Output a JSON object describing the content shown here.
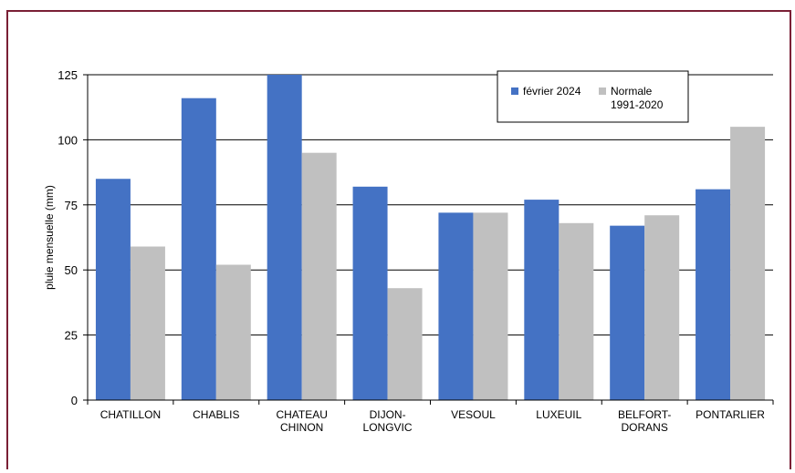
{
  "chart_data": {
    "type": "bar",
    "ylabel": "pluie mensuelle (mm)",
    "xlabel": "",
    "ylim": [
      0,
      125
    ],
    "yticks": [
      "0",
      "25",
      "50",
      "75",
      "100",
      "125"
    ],
    "grid": true,
    "legend_position": "top-right",
    "categories": [
      [
        "CHATILLON"
      ],
      [
        "CHABLIS"
      ],
      [
        "CHATEAU",
        "CHINON"
      ],
      [
        "DIJON-",
        "LONGVIC"
      ],
      [
        "VESOUL"
      ],
      [
        "LUXEUIL"
      ],
      [
        "BELFORT-",
        "DORANS"
      ],
      [
        "PONTARLIER"
      ]
    ],
    "series": [
      {
        "name": [
          "février 2024"
        ],
        "color": "#4472c4",
        "values": [
          85,
          116,
          125,
          82,
          72,
          77,
          67,
          81
        ]
      },
      {
        "name": [
          "Normale",
          "1991-2020"
        ],
        "color": "#c0c0c0",
        "values": [
          59,
          52,
          95,
          43,
          72,
          68,
          71,
          105
        ]
      }
    ]
  }
}
